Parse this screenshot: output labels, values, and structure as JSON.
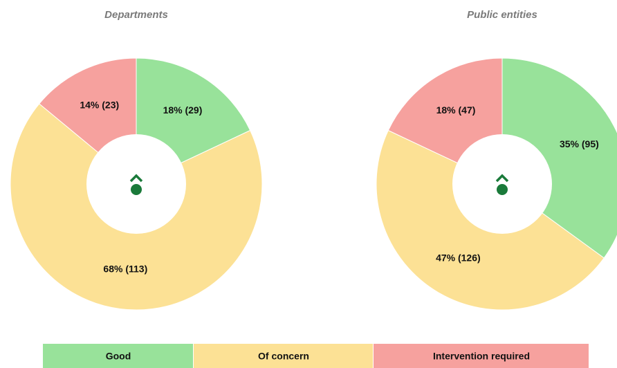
{
  "chart_data": [
    {
      "type": "donut",
      "title": "Departments",
      "categories": [
        "Good",
        "Of concern",
        "Intervention  required"
      ],
      "values": [
        18,
        68,
        14
      ],
      "value_labels": [
        "18% (29)",
        "68% (113)",
        "14% (23)"
      ],
      "colors": [
        "#98e29a",
        "#fce195",
        "#f6a19e"
      ]
    },
    {
      "type": "donut",
      "title": "Public entities",
      "categories": [
        "Good",
        "Of concern",
        "Intervention  required"
      ],
      "values": [
        35,
        47,
        18
      ],
      "value_labels": [
        "35% (95)",
        "47% (126)",
        "18% (47)"
      ],
      "colors": [
        "#98e29a",
        "#fce195",
        "#f6a19e"
      ]
    }
  ]
}
